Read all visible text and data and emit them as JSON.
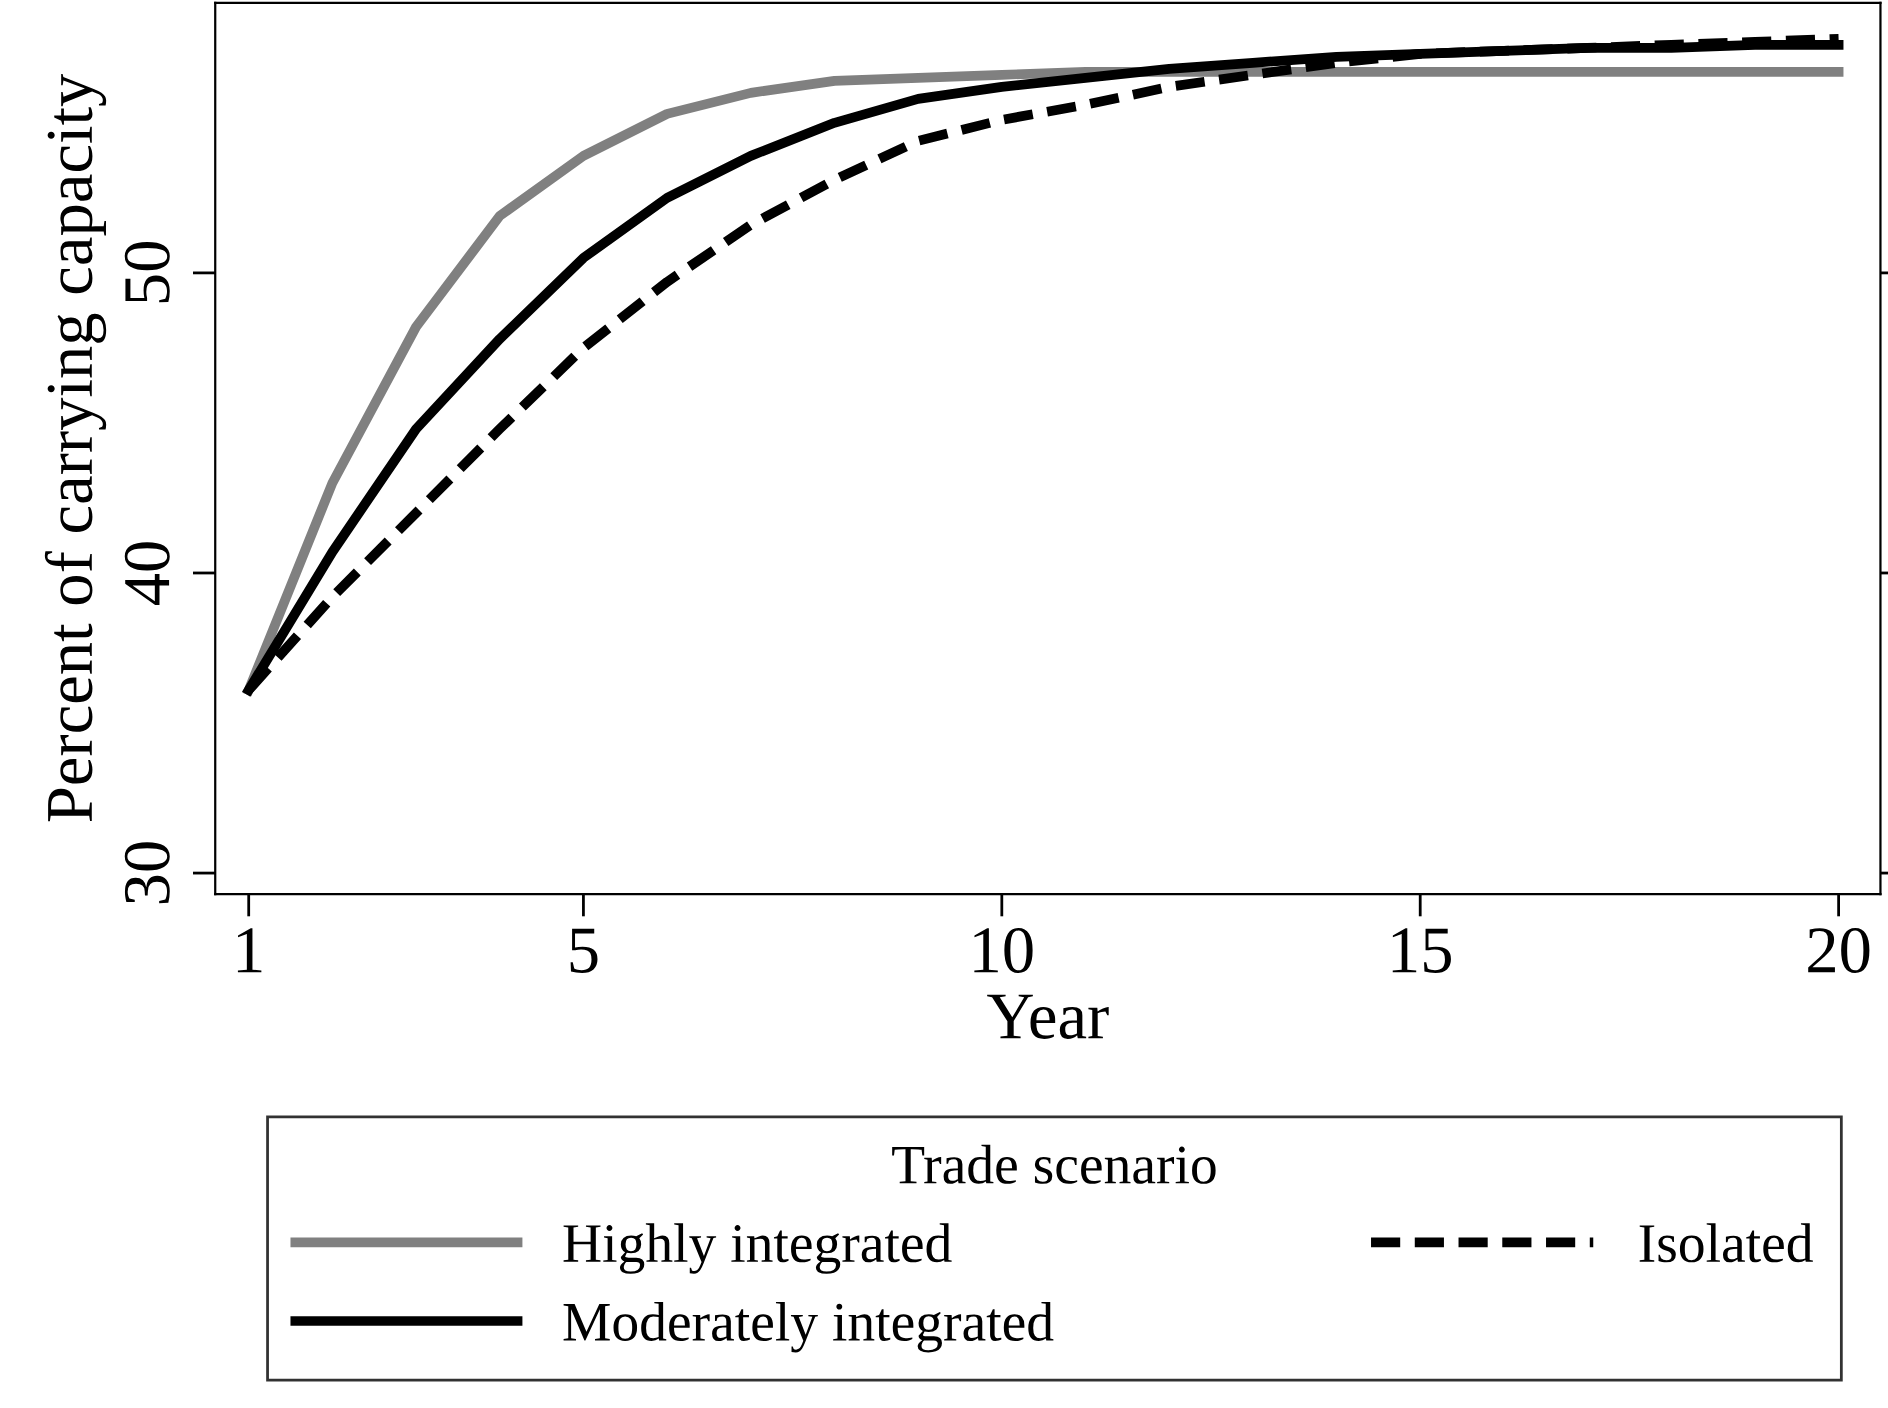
{
  "chart_data": {
    "type": "line",
    "xlabel": "Year",
    "ylabel": "Percent of carrying capacity",
    "legend_title": "Trade scenario",
    "legend": "bottom",
    "grid": false,
    "marker": "none",
    "x": [
      1,
      2,
      3,
      4,
      5,
      6,
      7,
      8,
      9,
      10,
      11,
      12,
      13,
      14,
      15,
      16,
      17,
      18,
      19,
      20
    ],
    "xlim": [
      0.6,
      20.5
    ],
    "xticks": [
      1,
      5,
      10,
      15,
      20
    ],
    "ylim": [
      29.3,
      59.0
    ],
    "yticks": [
      30,
      40,
      50
    ],
    "series": [
      {
        "name": "Highly integrated",
        "color": "#808080",
        "line_style": "solid",
        "values": [
          36.1,
          43.0,
          48.2,
          51.9,
          53.9,
          55.3,
          56.0,
          56.4,
          56.5,
          56.6,
          56.7,
          56.7,
          56.7,
          56.7,
          56.7,
          56.7,
          56.7,
          56.7,
          56.7,
          56.7
        ]
      },
      {
        "name": "Moderately integrated",
        "color": "#000000",
        "line_style": "solid",
        "values": [
          36.1,
          40.7,
          44.8,
          47.8,
          50.5,
          52.5,
          53.9,
          55.0,
          55.8,
          56.2,
          56.5,
          56.8,
          57.0,
          57.2,
          57.3,
          57.4,
          57.5,
          57.5,
          57.6,
          57.6
        ]
      },
      {
        "name": "Isolated",
        "color": "#000000",
        "line_style": "dashed",
        "values": [
          36.1,
          39.2,
          42.0,
          44.8,
          47.5,
          49.7,
          51.6,
          53.1,
          54.4,
          55.1,
          55.6,
          56.2,
          56.6,
          57.0,
          57.3,
          57.4,
          57.5,
          57.6,
          57.7,
          57.8
        ]
      }
    ]
  }
}
